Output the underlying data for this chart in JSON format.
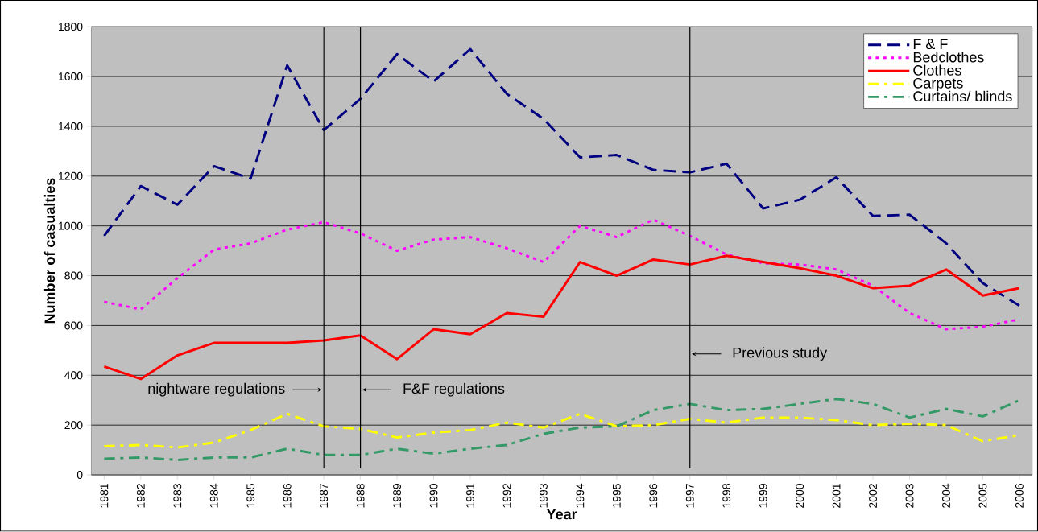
{
  "chart_data": {
    "type": "line",
    "xlabel": "Year",
    "ylabel": "Number of casualties",
    "categories": [
      "1981",
      "1982",
      "1983",
      "1984",
      "1985",
      "1986",
      "1987",
      "1988",
      "1989",
      "1990",
      "1991",
      "1992",
      "1993",
      "1994",
      "1995",
      "1996",
      "1997",
      "1998",
      "1999",
      "2000",
      "2001",
      "2002",
      "2003",
      "2004",
      "2005",
      "2006"
    ],
    "series": [
      {
        "name": "F & F",
        "color": "#000080",
        "line_style": "dashed",
        "values": [
          960,
          1160,
          1085,
          1240,
          1190,
          1645,
          1385,
          1510,
          1690,
          1580,
          1710,
          1530,
          1430,
          1275,
          1285,
          1225,
          1215,
          1250,
          1070,
          1105,
          1195,
          1040,
          1045,
          930,
          770,
          680
        ]
      },
      {
        "name": "Bedclothes",
        "color": "#ff00ff",
        "line_style": "dotted",
        "values": [
          695,
          665,
          790,
          905,
          930,
          985,
          1015,
          970,
          900,
          945,
          955,
          910,
          855,
          1000,
          955,
          1025,
          960,
          885,
          850,
          845,
          825,
          760,
          650,
          585,
          595,
          625
        ]
      },
      {
        "name": "Clothes",
        "color": "#ff0000",
        "line_style": "solid",
        "values": [
          435,
          385,
          480,
          530,
          530,
          530,
          540,
          560,
          465,
          585,
          565,
          650,
          635,
          855,
          800,
          865,
          845,
          880,
          855,
          830,
          800,
          750,
          760,
          825,
          720,
          750
        ]
      },
      {
        "name": "Carpets",
        "color": "#ffff00",
        "line_style": "dashdot",
        "values": [
          115,
          120,
          110,
          130,
          180,
          245,
          195,
          185,
          150,
          170,
          180,
          210,
          190,
          245,
          195,
          200,
          225,
          210,
          230,
          230,
          220,
          200,
          205,
          200,
          135,
          160
        ]
      },
      {
        "name": "Curtains/ blinds",
        "color": "#339966",
        "line_style": "dashdot",
        "values": [
          65,
          70,
          60,
          70,
          70,
          105,
          80,
          80,
          105,
          85,
          105,
          120,
          165,
          190,
          195,
          260,
          285,
          260,
          265,
          285,
          305,
          285,
          230,
          265,
          235,
          300
        ]
      }
    ],
    "ylim": [
      0,
      1800
    ],
    "yticks": [
      0,
      200,
      400,
      600,
      800,
      1000,
      1200,
      1400,
      1600,
      1800
    ],
    "grid": "y",
    "legend": "top right",
    "marker": "none",
    "ref_lines": [
      {
        "axis": "x",
        "value": "1987",
        "label": "nightware regulations"
      },
      {
        "axis": "x",
        "value": "1988",
        "label": "F&F regulations"
      },
      {
        "axis": "x",
        "value": "1997",
        "label": "Previous study"
      }
    ]
  }
}
